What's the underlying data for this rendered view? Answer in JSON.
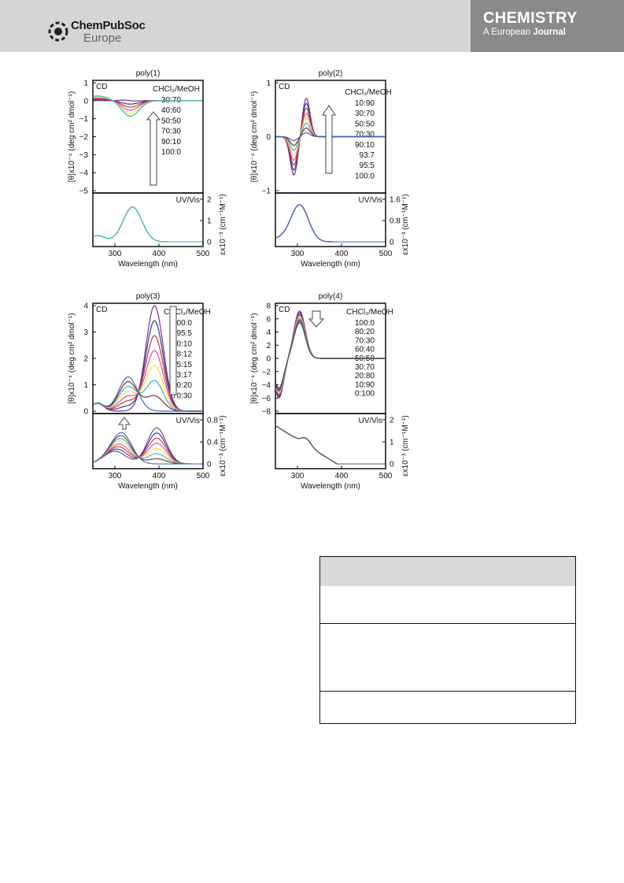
{
  "header": {
    "logo_name": "ChemPubSoc",
    "logo_sub": "Europe",
    "journal_title": "CHEMISTRY",
    "journal_sub_a": "A European",
    "journal_sub_b": "Journal",
    "journal_color": "#8a8a8a"
  },
  "figure": {
    "x_label": "Wavelength (nm)",
    "cd_label": "CD",
    "uv_label": "UV/Vis",
    "cd_axis_label": "[θ]x10⁻⁴ (deg cm² dmol⁻¹)",
    "uv_axis_label": "εx10⁻³ (cm⁻¹M⁻¹)",
    "legend_header": "CHCl₃/MeOH",
    "panels": [
      {
        "title": "poly(1)",
        "cd_yticks": [
          "1",
          "0",
          "−1",
          "−2",
          "−3",
          "−4",
          "−5"
        ],
        "uv_yticks": [
          "2",
          "1",
          "0"
        ],
        "xticks": [
          "300",
          "400",
          "500"
        ],
        "legend": [
          "30:70",
          "40:60",
          "50:50",
          "70:30",
          "90:10",
          "100:0"
        ]
      },
      {
        "title": "poly(2)",
        "cd_yticks": [
          "1",
          "0",
          "−1"
        ],
        "uv_yticks": [
          "1.6",
          "0.8",
          "0"
        ],
        "xticks": [
          "300",
          "400",
          "500"
        ],
        "legend": [
          "10:90",
          "30:70",
          "50:50",
          "70:30",
          "90:10",
          "93:7",
          "95:5",
          "100:0"
        ]
      },
      {
        "title": "poly(3)",
        "cd_yticks": [
          "4",
          "3",
          "2",
          "1",
          "0"
        ],
        "uv_yticks": [
          "0.8",
          "0.4",
          "0"
        ],
        "xticks": [
          "300",
          "400",
          "500"
        ],
        "legend": [
          "100:0",
          "95:5",
          "90:10",
          "88:12",
          "85:15",
          "83:17",
          "80:20",
          "70:30"
        ]
      },
      {
        "title": "poly(4)",
        "cd_yticks": [
          "8",
          "6",
          "4",
          "2",
          "0",
          "−2",
          "−4",
          "−6",
          "−8"
        ],
        "uv_yticks": [
          "2",
          "1",
          "0"
        ],
        "xticks": [
          "300",
          "400",
          "500"
        ],
        "legend": [
          "100:0",
          "80:20",
          "70:30",
          "60:40",
          "50:50",
          "30:70",
          "20:80",
          "10:90",
          "0:100"
        ]
      }
    ],
    "series_colors": [
      "#7b2f8e",
      "#1f3fa0",
      "#c8362b",
      "#e64aa0",
      "#ffe23a",
      "#2bb7c9",
      "#8b2a2a",
      "#3a66c8",
      "#555555"
    ]
  }
}
